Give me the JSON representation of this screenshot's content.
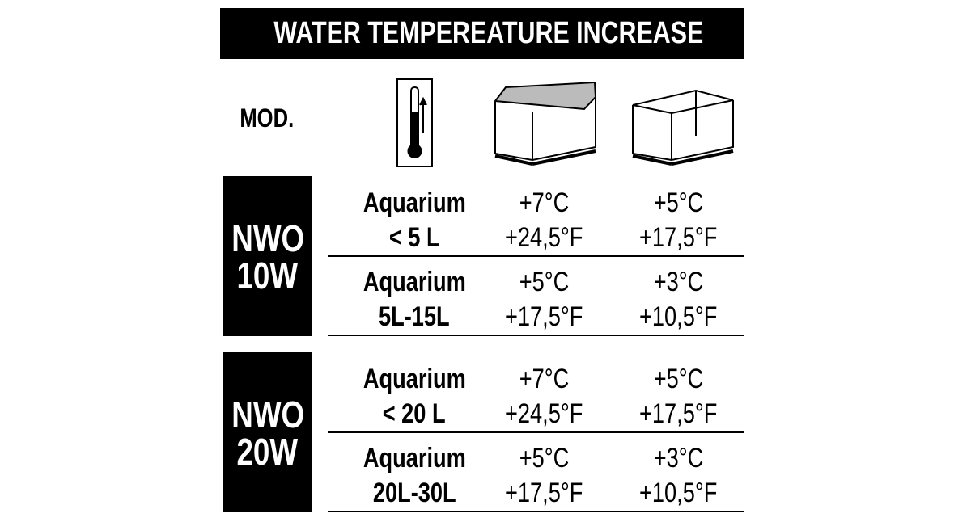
{
  "header": {
    "title": "WATER TEMPEREATURE INCREASE",
    "model_label": "MOD."
  },
  "groups": [
    {
      "model": [
        "NWO",
        "10W"
      ],
      "rows": [
        {
          "label": [
            "Aquarium",
            "< 5 L"
          ],
          "covered": [
            "+7°C",
            "+24,5°F"
          ],
          "open": [
            "+5°C",
            "+17,5°F"
          ]
        },
        {
          "label": [
            "Aquarium",
            "5L-15L"
          ],
          "covered": [
            "+5°C",
            "+17,5°F"
          ],
          "open": [
            "+3°C",
            "+10,5°F"
          ]
        }
      ]
    },
    {
      "model": [
        "NWO",
        "20W"
      ],
      "rows": [
        {
          "label": [
            "Aquarium",
            "< 20 L"
          ],
          "covered": [
            "+7°C",
            "+24,5°F"
          ],
          "open": [
            "+5°C",
            "+17,5°F"
          ]
        },
        {
          "label": [
            "Aquarium",
            "20L-30L"
          ],
          "covered": [
            "+5°C",
            "+17,5°F"
          ],
          "open": [
            "+3°C",
            "+10,5°F"
          ]
        }
      ]
    }
  ]
}
